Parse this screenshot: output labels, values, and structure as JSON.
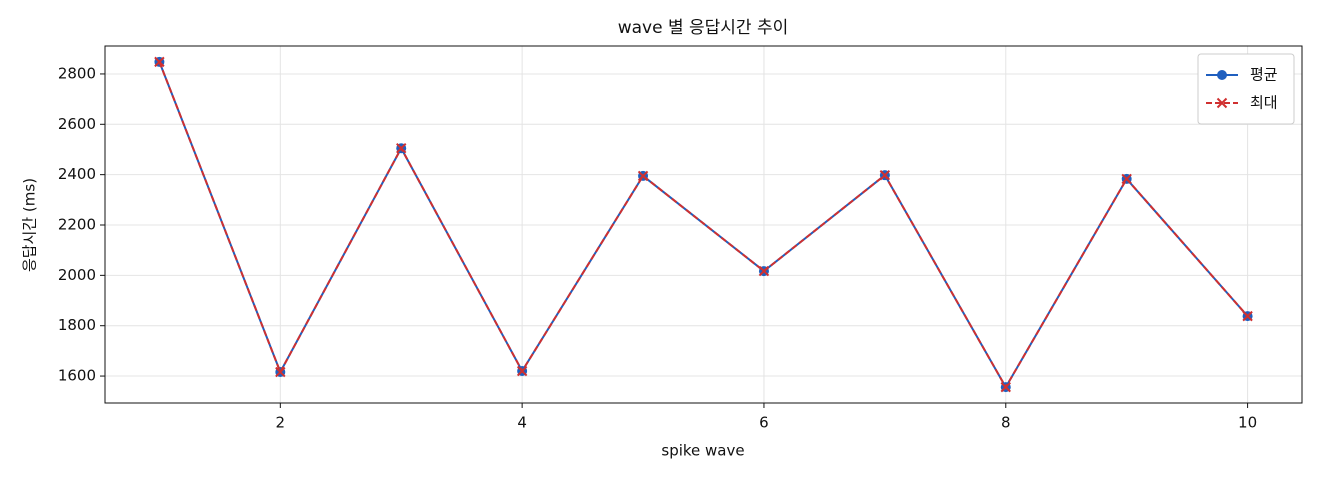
{
  "chart_data": {
    "type": "line",
    "title": "wave 별 응답시간 추이",
    "x_label": "spike wave",
    "y_label": "응답시간 (ms)",
    "x": [
      1,
      2,
      3,
      4,
      5,
      6,
      7,
      8,
      9,
      10
    ],
    "series": [
      {
        "name": "평균",
        "color": "#1f5fbf",
        "marker": "circle",
        "dash": false,
        "values": [
          2848,
          1616,
          2505,
          1620,
          2395,
          2017,
          2398,
          1556,
          2383,
          1838
        ]
      },
      {
        "name": "최대",
        "color": "#d03030",
        "marker": "x",
        "dash": true,
        "values": [
          2848,
          1616,
          2505,
          1620,
          2395,
          2017,
          2398,
          1556,
          2383,
          1838
        ]
      }
    ],
    "xlim": [
      0.55,
      10.45
    ],
    "ylim": [
      1493,
      2911
    ],
    "xticks": [
      2,
      4,
      6,
      8,
      10
    ],
    "yticks": [
      1600,
      1800,
      2000,
      2200,
      2400,
      2600,
      2800
    ],
    "grid": true,
    "legend": "upper right"
  }
}
